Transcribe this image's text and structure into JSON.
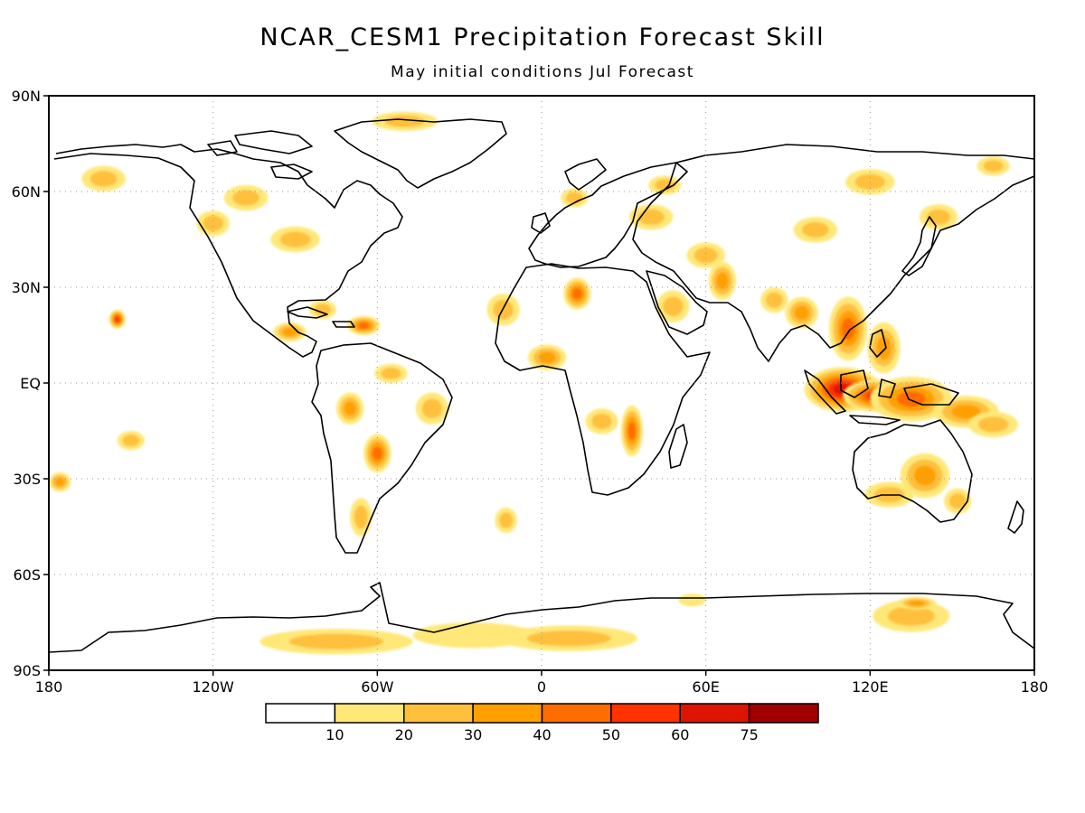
{
  "title": "NCAR_CESM1 Precipitation Forecast Skill",
  "subtitle": "May initial conditions   Jul Forecast",
  "map": {
    "projection": "cylindrical-equidistant",
    "lon_range": [
      -180,
      180
    ],
    "lat_range": [
      -90,
      90
    ],
    "grid": "dotted",
    "lat_ticks": [
      {
        "value": 90,
        "label": "90N"
      },
      {
        "value": 60,
        "label": "60N"
      },
      {
        "value": 30,
        "label": "30N"
      },
      {
        "value": 0,
        "label": "EQ"
      },
      {
        "value": -30,
        "label": "30S"
      },
      {
        "value": -60,
        "label": "60S"
      },
      {
        "value": -90,
        "label": "90S"
      }
    ],
    "lon_ticks": [
      {
        "value": -180,
        "label": "180"
      },
      {
        "value": -120,
        "label": "120W"
      },
      {
        "value": -60,
        "label": "60W"
      },
      {
        "value": 0,
        "label": "0"
      },
      {
        "value": 60,
        "label": "60E"
      },
      {
        "value": 120,
        "label": "120E"
      },
      {
        "value": 180,
        "label": "180"
      }
    ]
  },
  "colorbar": {
    "levels": [
      "10",
      "20",
      "30",
      "40",
      "50",
      "60",
      "75"
    ],
    "colors": [
      "#ffffff",
      "#ffe878",
      "#ffc03c",
      "#ffa000",
      "#ff6c00",
      "#ff3200",
      "#dc1400",
      "#a00000"
    ]
  },
  "skill_regions": [
    {
      "lon": 110,
      "lat": -2,
      "rlon": 14,
      "rlat": 7,
      "level": 6
    },
    {
      "lon": 122,
      "lat": -4,
      "rlon": 12,
      "rlat": 5,
      "level": 5
    },
    {
      "lon": 135,
      "lat": -5,
      "rlon": 15,
      "rlat": 7,
      "level": 4
    },
    {
      "lon": 155,
      "lat": -9,
      "rlon": 12,
      "rlat": 5,
      "level": 3
    },
    {
      "lon": 165,
      "lat": -13,
      "rlon": 9,
      "rlat": 4,
      "level": 2
    },
    {
      "lon": 112,
      "lat": 17,
      "rlon": 7,
      "rlat": 10,
      "level": 4
    },
    {
      "lon": 125,
      "lat": 11,
      "rlon": 6,
      "rlat": 8,
      "level": 3
    },
    {
      "lon": 95,
      "lat": 22,
      "rlon": 6,
      "rlat": 5,
      "level": 3
    },
    {
      "lon": 85,
      "lat": 26,
      "rlon": 5,
      "rlat": 4,
      "level": 2
    },
    {
      "lon": 140,
      "lat": -29,
      "rlon": 9,
      "rlat": 7,
      "level": 3
    },
    {
      "lon": 127,
      "lat": -35,
      "rlon": 9,
      "rlat": 4,
      "level": 2
    },
    {
      "lon": 152,
      "lat": -37,
      "rlon": 5,
      "rlat": 4,
      "level": 2
    },
    {
      "lon": 13,
      "lat": 28,
      "rlon": 5,
      "rlat": 5,
      "level": 4
    },
    {
      "lon": 2,
      "lat": 8,
      "rlon": 7,
      "rlat": 4,
      "level": 3
    },
    {
      "lon": -14,
      "lat": 23,
      "rlon": 6,
      "rlat": 5,
      "level": 2
    },
    {
      "lon": 33,
      "lat": -15,
      "rlon": 4,
      "rlat": 8,
      "level": 4
    },
    {
      "lon": 22,
      "lat": -12,
      "rlon": 6,
      "rlat": 4,
      "level": 2
    },
    {
      "lon": 48,
      "lat": 24,
      "rlon": 6,
      "rlat": 5,
      "level": 2
    },
    {
      "lon": 66,
      "lat": 32,
      "rlon": 5,
      "rlat": 6,
      "level": 3
    },
    {
      "lon": 60,
      "lat": 40,
      "rlon": 7,
      "rlat": 4,
      "level": 2
    },
    {
      "lon": 40,
      "lat": 52,
      "rlon": 8,
      "rlat": 4,
      "level": 2
    },
    {
      "lon": 45,
      "lat": 62,
      "rlon": 6,
      "rlat": 3,
      "level": 2
    },
    {
      "lon": 12,
      "lat": 58,
      "rlon": 5,
      "rlat": 3,
      "level": 2
    },
    {
      "lon": 100,
      "lat": 48,
      "rlon": 8,
      "rlat": 4,
      "level": 2
    },
    {
      "lon": 120,
      "lat": 63,
      "rlon": 9,
      "rlat": 4,
      "level": 2
    },
    {
      "lon": 145,
      "lat": 52,
      "rlon": 7,
      "rlat": 4,
      "level": 2
    },
    {
      "lon": 165,
      "lat": 68,
      "rlon": 6,
      "rlat": 3,
      "level": 2
    },
    {
      "lon": -60,
      "lat": -22,
      "rlon": 5,
      "rlat": 6,
      "level": 4
    },
    {
      "lon": -70,
      "lat": -8,
      "rlon": 5,
      "rlat": 5,
      "level": 3
    },
    {
      "lon": -40,
      "lat": -8,
      "rlon": 6,
      "rlat": 5,
      "level": 2
    },
    {
      "lon": -55,
      "lat": 3,
      "rlon": 6,
      "rlat": 3,
      "level": 2
    },
    {
      "lon": -66,
      "lat": -42,
      "rlon": 4,
      "rlat": 6,
      "level": 2
    },
    {
      "lon": -92,
      "lat": 16,
      "rlon": 6,
      "rlat": 3,
      "level": 3
    },
    {
      "lon": -65,
      "lat": 18,
      "rlon": 6,
      "rlat": 3,
      "level": 4
    },
    {
      "lon": -80,
      "lat": 23,
      "rlon": 5,
      "rlat": 3,
      "level": 2
    },
    {
      "lon": -155,
      "lat": 20,
      "rlon": 3,
      "rlat": 3,
      "level": 5
    },
    {
      "lon": -108,
      "lat": 58,
      "rlon": 8,
      "rlat": 4,
      "level": 2
    },
    {
      "lon": -90,
      "lat": 45,
      "rlon": 9,
      "rlat": 4,
      "level": 2
    },
    {
      "lon": -120,
      "lat": 50,
      "rlon": 6,
      "rlat": 4,
      "level": 2
    },
    {
      "lon": -160,
      "lat": 64,
      "rlon": 8,
      "rlat": 4,
      "level": 2
    },
    {
      "lon": -50,
      "lat": 82,
      "rlon": 12,
      "rlat": 3,
      "level": 2
    },
    {
      "lon": -176,
      "lat": -31,
      "rlon": 4,
      "rlat": 3,
      "level": 3
    },
    {
      "lon": -150,
      "lat": -18,
      "rlon": 5,
      "rlat": 3,
      "level": 2
    },
    {
      "lon": -13,
      "lat": -43,
      "rlon": 4,
      "rlat": 4,
      "level": 2
    },
    {
      "lon": -75,
      "lat": -81,
      "rlon": 28,
      "rlat": 4,
      "level": 2
    },
    {
      "lon": -25,
      "lat": -79,
      "rlon": 22,
      "rlat": 4,
      "level": 1
    },
    {
      "lon": 10,
      "lat": -80,
      "rlon": 25,
      "rlat": 4,
      "level": 2
    },
    {
      "lon": 135,
      "lat": -73,
      "rlon": 14,
      "rlat": 5,
      "level": 2
    },
    {
      "lon": 137,
      "lat": -69,
      "rlon": 7,
      "rlat": 2,
      "level": 3
    },
    {
      "lon": 55,
      "lat": -68,
      "rlon": 5,
      "rlat": 2,
      "level": 1
    }
  ]
}
